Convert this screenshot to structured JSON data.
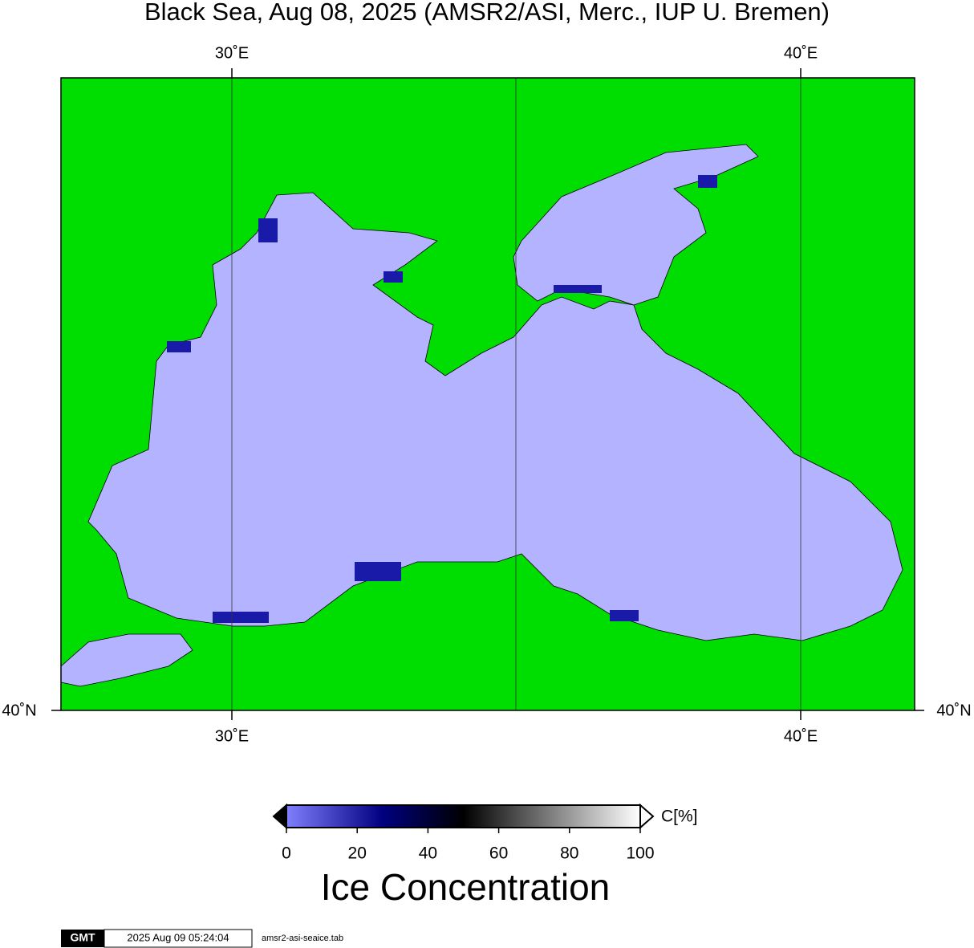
{
  "map": {
    "title": "Black Sea, Aug 08, 2025 (AMSR2/ASI, Merc., IUP U. Bremen)",
    "meridian_labels": [
      "30˚E",
      "40˚E"
    ],
    "parallel_label": "40˚N",
    "colorbar": {
      "unit": "C[%]",
      "range": [
        0,
        100
      ],
      "ticks": [
        0,
        20,
        40,
        60,
        80,
        100
      ],
      "title": "Ice Concentration"
    },
    "footer": {
      "logo": "GMT",
      "timestamp": "2025 Aug 09 05:24:04",
      "file": "amsr2-asi-seaice.tab"
    }
  }
}
